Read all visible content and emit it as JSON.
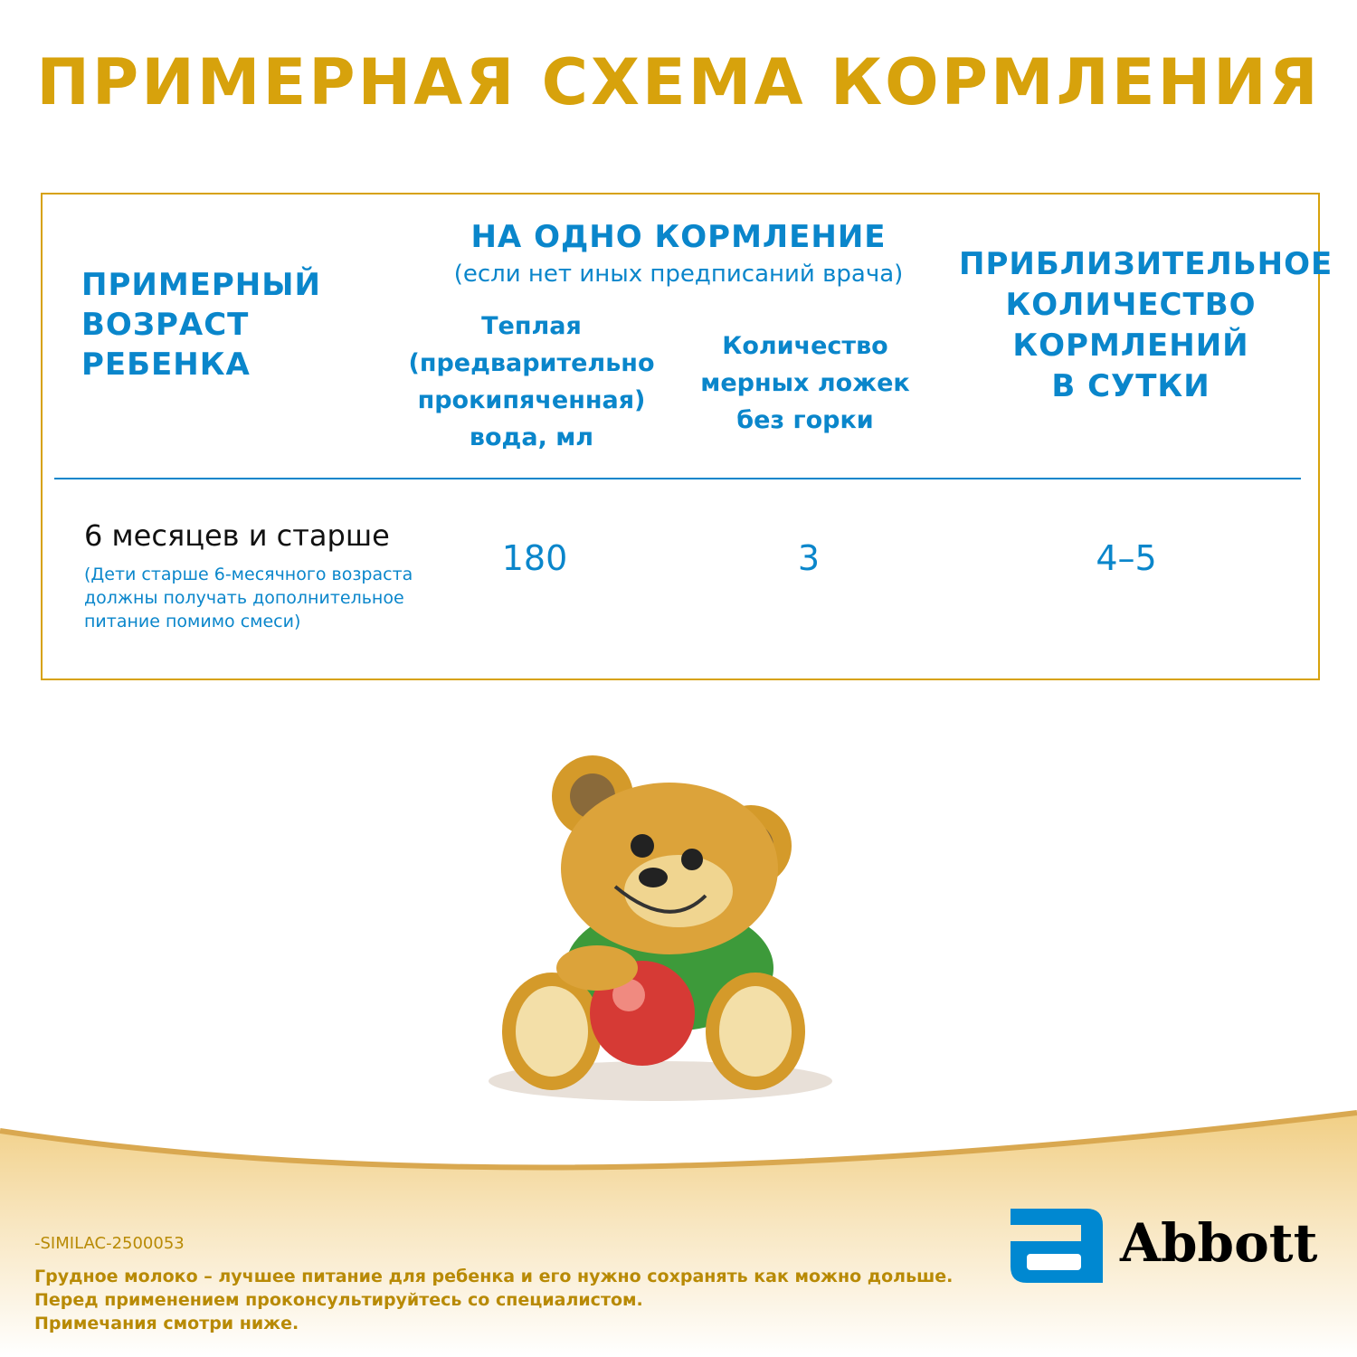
{
  "title": "ПРИМЕРНАЯ СХЕМА КОРМЛЕНИЯ",
  "table": {
    "header_age": [
      "ПРИМЕРНЫЙ",
      "ВОЗРАСТ",
      "РЕБЕНКА"
    ],
    "header_feeding": "НА ОДНО КОРМЛЕНИЕ",
    "header_feeding_note": "(если нет иных предписаний врача)",
    "header_water": [
      "Теплая",
      "(предварительно",
      "прокипяченная)",
      "вода, мл"
    ],
    "header_spoons": [
      "Количество",
      "мерных ложек",
      "без горки"
    ],
    "header_count": [
      "ПРИБЛИЗИТЕЛЬНОЕ",
      "КОЛИЧЕСТВО",
      "КОРМЛЕНИЙ",
      "В СУТКИ"
    ],
    "rows": [
      {
        "age": "6 месяцев и старше",
        "note": [
          "(Дети старше 6-месячного возраста",
          "должны получать дополнительное",
          "питание помимо смеси)"
        ],
        "water_ml": "180",
        "spoons": "3",
        "feedings_per_day": "4–5"
      }
    ]
  },
  "footer": {
    "code": "-SIMILAC-2500053",
    "disclaimer": [
      "Грудное молоко – лучшее питание для ребенка и его нужно сохранять как можно дольше.",
      "Перед применением проконсультируйтесь со специалистом.",
      "Примечания смотри ниже."
    ],
    "logo": "Abbott"
  },
  "colors": {
    "gold": "#d7a20c",
    "blue": "#0a86cb",
    "abbott_blue": "#0088d1"
  }
}
